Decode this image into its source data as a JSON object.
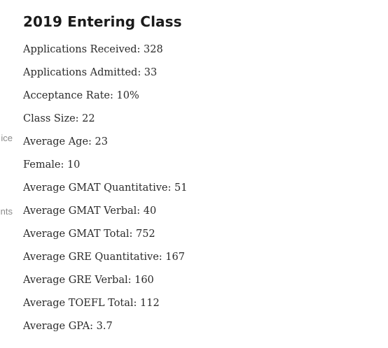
{
  "left_fragments": [
    "ice",
    "nts"
  ],
  "section": {
    "title": "2019 Entering Class",
    "stats": [
      "Applications Received: 328",
      "Applications Admitted: 33",
      "Acceptance Rate: 10%",
      "Class Size: 22",
      "Average Age: 23",
      "Female: 10",
      "Average GMAT Quantitative: 51",
      "Average GMAT Verbal: 40",
      "Average GMAT Total: 752",
      "Average GRE Quantitative: 167",
      "Average GRE Verbal: 160",
      "Average TOEFL Total: 112",
      "Average GPA: 3.7"
    ]
  }
}
